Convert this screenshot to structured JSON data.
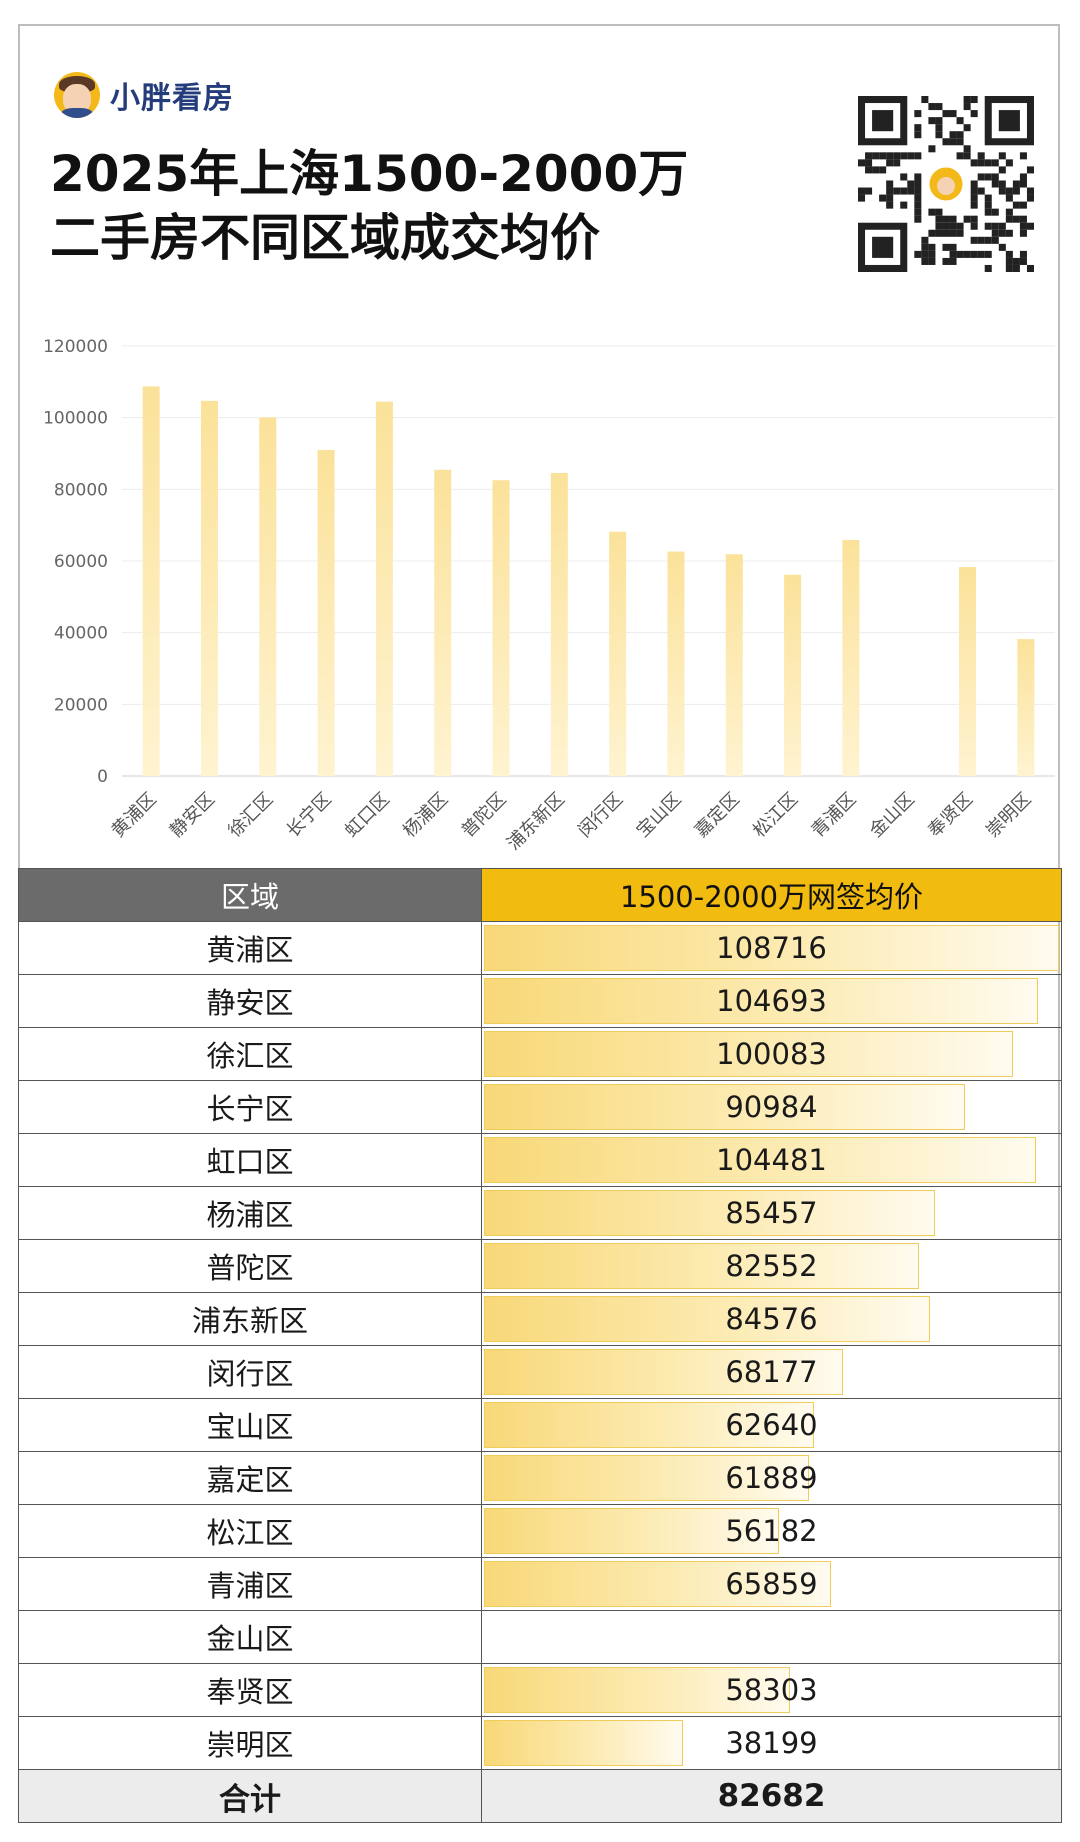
{
  "brand": {
    "name": "小胖看房"
  },
  "title": {
    "line1": "2025年上海1500-2000万",
    "line2": "二手房不同区域成交均价"
  },
  "colors": {
    "bar": "#fbe29a",
    "bar_border": "#f0cc5a",
    "header_left": "#6b6b6b",
    "header_right": "#f2bb0f",
    "brand_text": "#243c7b"
  },
  "icons": {
    "logo": "avatar-icon",
    "qr": "qr-code-icon"
  },
  "chart_data": {
    "type": "bar",
    "categories": [
      "黄浦区",
      "静安区",
      "徐汇区",
      "长宁区",
      "虹口区",
      "杨浦区",
      "普陀区",
      "浦东新区",
      "闵行区",
      "宝山区",
      "嘉定区",
      "松江区",
      "青浦区",
      "金山区",
      "奉贤区",
      "崇明区"
    ],
    "values": [
      108716,
      104693,
      100083,
      90984,
      104481,
      85457,
      82552,
      84576,
      68177,
      62640,
      61889,
      56182,
      65859,
      null,
      58303,
      38199
    ],
    "yticks": [
      "0",
      "20000",
      "40000",
      "60000",
      "80000",
      "100000",
      "120000"
    ],
    "ylim": [
      0,
      120000
    ],
    "grid": true,
    "xlabel": "",
    "ylabel": ""
  },
  "table": {
    "headers": [
      "区域",
      "1500-2000万网签均价"
    ],
    "rows": [
      {
        "name": "黄浦区",
        "value": "108716",
        "fraction": 1.0
      },
      {
        "name": "静安区",
        "value": "104693",
        "fraction": 0.963
      },
      {
        "name": "徐汇区",
        "value": "100083",
        "fraction": 0.921
      },
      {
        "name": "长宁区",
        "value": "90984",
        "fraction": 0.837
      },
      {
        "name": "虹口区",
        "value": "104481",
        "fraction": 0.961
      },
      {
        "name": "杨浦区",
        "value": "85457",
        "fraction": 0.786
      },
      {
        "name": "普陀区",
        "value": "82552",
        "fraction": 0.759
      },
      {
        "name": "浦东新区",
        "value": "84576",
        "fraction": 0.778
      },
      {
        "name": "闵行区",
        "value": "68177",
        "fraction": 0.627
      },
      {
        "name": "宝山区",
        "value": "62640",
        "fraction": 0.576
      },
      {
        "name": "嘉定区",
        "value": "61889",
        "fraction": 0.569
      },
      {
        "name": "松江区",
        "value": "56182",
        "fraction": 0.517
      },
      {
        "name": "青浦区",
        "value": "65859",
        "fraction": 0.606
      },
      {
        "name": "金山区",
        "value": "",
        "fraction": 0
      },
      {
        "name": "奉贤区",
        "value": "58303",
        "fraction": 0.536
      },
      {
        "name": "崇明区",
        "value": "38199",
        "fraction": 0.351
      }
    ],
    "total": {
      "name": "合计",
      "value": "82682"
    }
  }
}
